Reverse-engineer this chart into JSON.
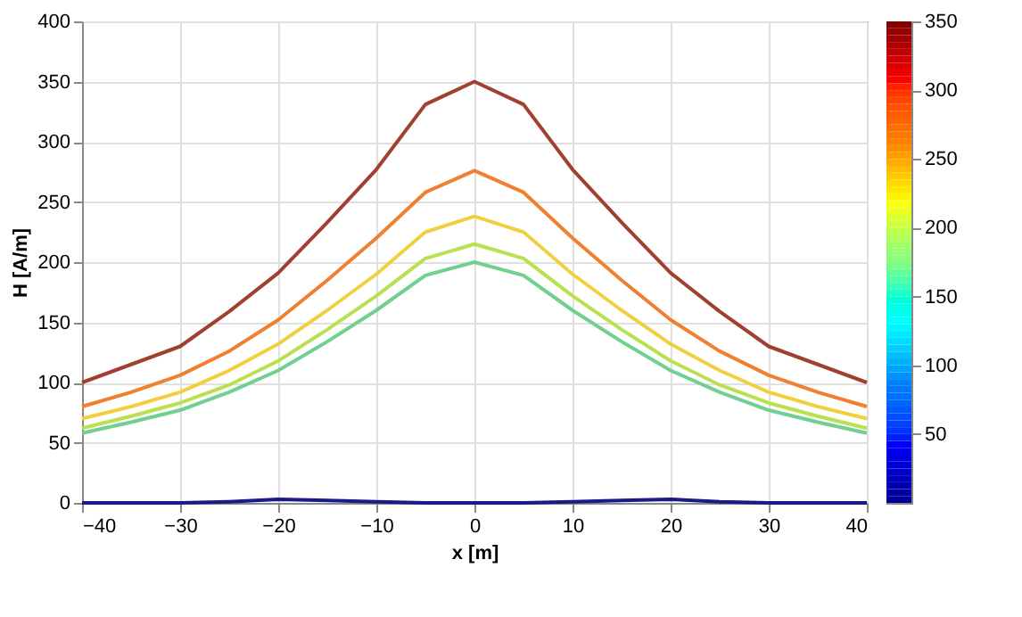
{
  "chart_data": {
    "type": "line",
    "xlabel": "x [m]",
    "ylabel": "H [A/m]",
    "x": [
      -40,
      -35,
      -30,
      -25,
      -20,
      -15,
      -10,
      -5,
      0,
      5,
      10,
      15,
      20,
      25,
      30,
      35,
      40
    ],
    "series": [
      {
        "color": "#a04030",
        "values": [
          100,
          115,
          130,
          159,
          191,
          233,
          277,
          331,
          350,
          331,
          277,
          233,
          191,
          159,
          130,
          115,
          100
        ]
      },
      {
        "color": "#f08030",
        "values": [
          80,
          92,
          106,
          126,
          152,
          185,
          220,
          258,
          276,
          258,
          220,
          185,
          152,
          126,
          106,
          92,
          80
        ]
      },
      {
        "color": "#f0d040",
        "values": [
          70,
          80,
          92,
          110,
          132,
          160,
          190,
          225,
          238,
          225,
          190,
          160,
          132,
          110,
          92,
          80,
          70
        ]
      },
      {
        "color": "#b8e050",
        "values": [
          62,
          72,
          83,
          98,
          118,
          144,
          172,
          203,
          215,
          203,
          172,
          144,
          118,
          98,
          83,
          72,
          62
        ]
      },
      {
        "color": "#70d090",
        "values": [
          58,
          67,
          77,
          92,
          110,
          134,
          160,
          189,
          200,
          189,
          160,
          134,
          110,
          92,
          77,
          67,
          58
        ]
      },
      {
        "color": "#1a1a8c",
        "values": [
          0,
          0,
          0,
          1,
          3,
          2,
          1,
          0,
          0,
          0,
          1,
          2,
          3,
          1,
          0,
          0,
          0
        ]
      }
    ],
    "xlim": [
      -40,
      40
    ],
    "xticks": [
      -40,
      -30,
      -20,
      -10,
      0,
      10,
      20,
      30,
      40
    ],
    "ylim": [
      0,
      400
    ],
    "yticks": [
      0,
      50,
      100,
      150,
      200,
      250,
      300,
      350,
      400
    ],
    "grid": true,
    "clim": [
      0,
      350
    ],
    "cticks": [
      50,
      100,
      150,
      200,
      250,
      300,
      350
    ],
    "line_style": "solid",
    "marker": "none"
  }
}
